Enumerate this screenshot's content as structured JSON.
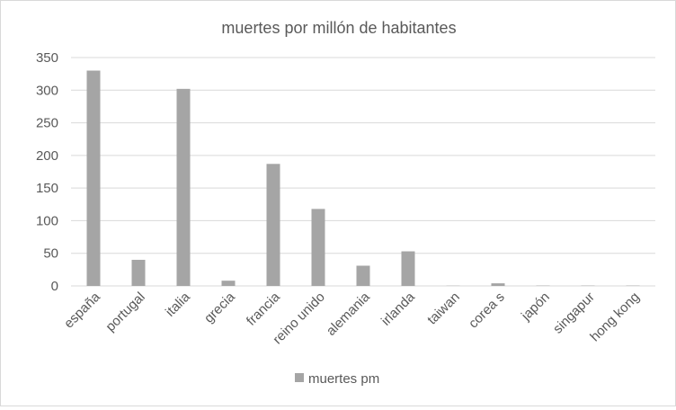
{
  "chart_data": {
    "type": "bar",
    "title": "muertes por millón de habitantes",
    "xlabel": "",
    "ylabel": "",
    "categories": [
      "españa",
      "portugal",
      "italia",
      "grecia",
      "francia",
      "reino unido",
      "alemania",
      "irlanda",
      "taiwan",
      "corea s",
      "japón",
      "singapur",
      "hong kong"
    ],
    "series": [
      {
        "name": "muertes pm",
        "values": [
          330,
          40,
          302,
          8,
          187,
          118,
          31,
          53,
          0.3,
          4,
          0.5,
          0.5,
          0.5
        ]
      }
    ],
    "ylim": [
      0,
      350
    ],
    "yticks": [
      0,
      50,
      100,
      150,
      200,
      250,
      300,
      350
    ],
    "grid": true,
    "legend": "bottom",
    "colors": {
      "bar": "#a5a5a5",
      "grid": "#d9d9d9",
      "text": "#595959"
    }
  }
}
